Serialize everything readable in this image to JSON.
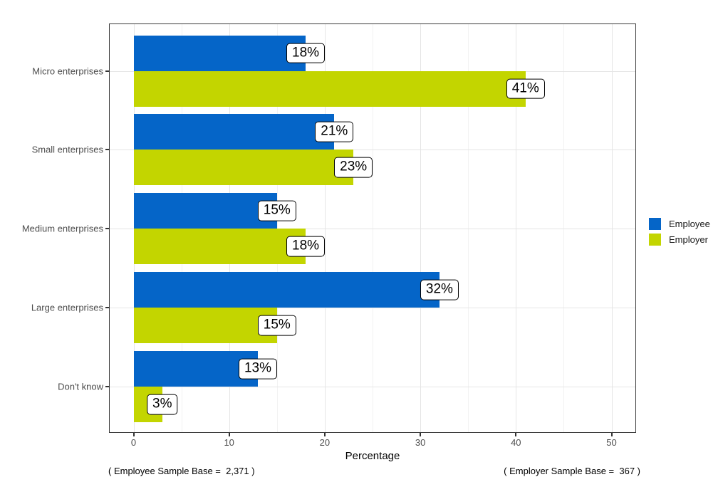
{
  "chart_data": {
    "type": "bar",
    "orientation": "horizontal",
    "title": "",
    "xlabel": "Percentage",
    "categories": [
      "Micro enterprises",
      "Small enterprises",
      "Medium enterprises",
      "Large enterprises",
      "Don't know"
    ],
    "series": [
      {
        "name": "Employee",
        "color": "#0565c8",
        "values": [
          18,
          21,
          15,
          32,
          13
        ],
        "labels": [
          "18%",
          "21%",
          "15%",
          "32%",
          "13%"
        ]
      },
      {
        "name": "Employer",
        "color": "#c3d500",
        "values": [
          41,
          23,
          18,
          15,
          3
        ],
        "labels": [
          "41%",
          "23%",
          "18%",
          "15%",
          "3%"
        ]
      }
    ],
    "x_ticks": [
      0,
      10,
      20,
      30,
      40,
      50
    ],
    "x_minor_ticks": [
      5,
      15,
      25,
      35,
      45
    ],
    "xlim": [
      -2.5,
      52.6
    ],
    "grid": {
      "major_color": "#e5e5e5",
      "minor_color": "#f2f2f2",
      "horizontal_major": true
    },
    "legend_position": "right"
  },
  "footnotes": {
    "left": "( Employee Sample Base =  2,371 )",
    "right": "( Employer Sample Base =  367 )"
  },
  "colors": {
    "panel_border": "#3a3a3a",
    "axis_text": "#4d4d4d",
    "tick_mark": "#333333",
    "bar_label_border": "#000000",
    "bar_label_background": "#ffffff",
    "employee_blue": "#0565c8",
    "employer_green": "#c3d500"
  }
}
